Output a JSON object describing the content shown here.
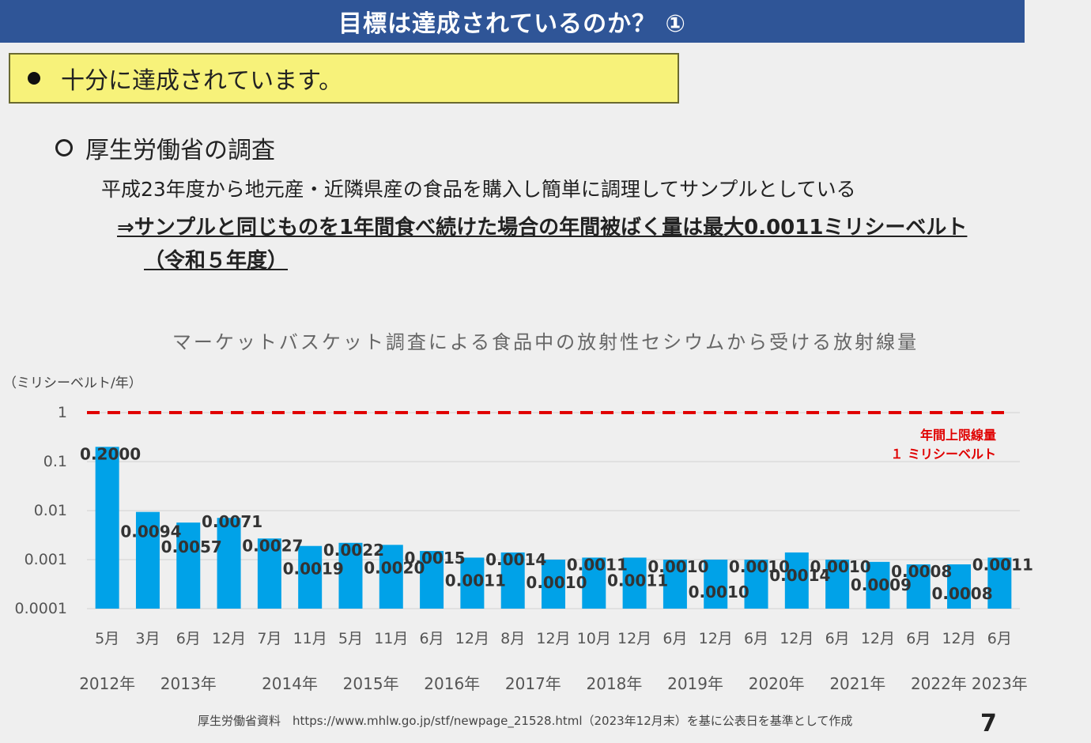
{
  "header": {
    "title": "目標は達成されているのか？ ①"
  },
  "summary": {
    "text": "十分に達成されています。"
  },
  "survey": {
    "heading": "厚生労働省の調査",
    "description": "平成23年度から地元産・近隣県産の食品を購入し簡単に調理してサンプルとしている",
    "result_line1": "⇒サンプルと同じものを1年間食べ続けた場合の年間被ばく量は最大0.0011ミリシーベルト",
    "result_line2": "（令和５年度）"
  },
  "footer": {
    "source": "厚生労働省資料　https://www.mhlw.go.jp/stf/newpage_21528.html（2023年12月末）を基に公表日を基準として作成",
    "page_number": "7"
  },
  "colors": {
    "bar": "#00a2e8",
    "limit": "#e00000",
    "header": "#2f5597",
    "highlight": "#f7f27a"
  },
  "chart_data": {
    "type": "bar",
    "title": "マーケットバスケット調査による食品中の放射性セシウムから受ける放射線量",
    "ylabel": "（ミリシーベルト/年）",
    "yscale": "log",
    "ylim": [
      0.0001,
      1
    ],
    "yticks": [
      "1",
      "0.1",
      "0.01",
      "0.001",
      "0.0001"
    ],
    "categories": [
      "5月",
      "3月",
      "6月",
      "12月",
      "7月",
      "11月",
      "5月",
      "11月",
      "6月",
      "12月",
      "8月",
      "12月",
      "10月",
      "12月",
      "6月",
      "12月",
      "6月",
      "12月",
      "6月",
      "12月",
      "6月",
      "12月",
      "6月"
    ],
    "years": [
      "2012年",
      "2013年",
      "2014年",
      "2015年",
      "2016年",
      "2017年",
      "2018年",
      "2019年",
      "2020年",
      "2021年",
      "2022年",
      "2023年"
    ],
    "values": [
      0.2,
      0.0094,
      0.0057,
      0.0071,
      0.0027,
      0.0019,
      0.0022,
      0.002,
      0.0015,
      0.0011,
      0.0014,
      0.001,
      0.0011,
      0.0011,
      0.001,
      0.001,
      0.001,
      0.0014,
      0.001,
      0.0009,
      0.0008,
      0.0008,
      0.0011
    ],
    "value_labels": [
      "0.2000",
      "0.0094",
      "0.0057",
      "0.0071",
      "0.0027",
      "0.0019",
      "0.0022",
      "0.0020",
      "0.0015",
      "0.0011",
      "0.0014",
      "0.0010",
      "0.0011",
      "0.0011",
      "0.0010",
      "0.0010",
      "0.0010",
      "0.0014",
      "0.0010",
      "0.0009",
      "0.0008",
      "0.0008",
      "0.0011"
    ],
    "reference_line": {
      "value": 1,
      "label_line1": "年間上限線量",
      "label_line2": "１ ミリシーベルト"
    },
    "grid": true
  }
}
